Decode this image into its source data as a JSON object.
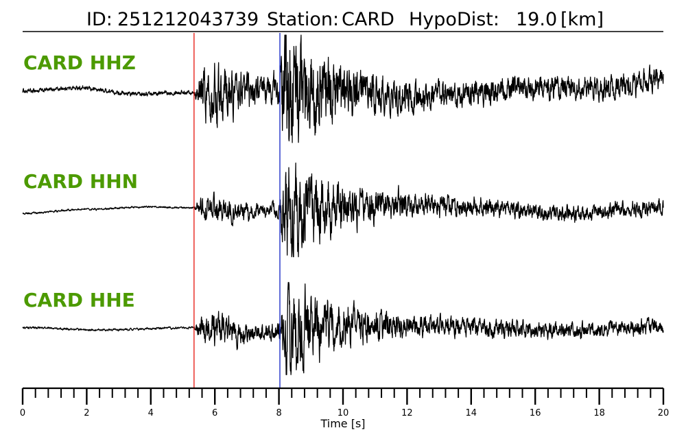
{
  "chart_data": {
    "type": "line",
    "title": {
      "id_label": "ID:",
      "id_value": "251212043739",
      "station_label": "Station:",
      "station_value": "CARD",
      "hypodist_label": "HypoDist:",
      "hypodist_value": "19.0",
      "hypodist_unit": "[km]"
    },
    "xlabel": "Time [s]",
    "xlim": [
      0,
      20
    ],
    "major_ticks": [
      0,
      2,
      4,
      6,
      8,
      10,
      12,
      14,
      16,
      18,
      20
    ],
    "minor_tick_step": 0.4,
    "label_color": "#4c9a00",
    "trace_color": "#000000",
    "picks": [
      {
        "phase": "P",
        "time": 5.35,
        "color": "#e8221b"
      },
      {
        "phase": "S",
        "time": 8.03,
        "color": "#1f31c8"
      }
    ],
    "series": [
      {
        "name": "CARD HHZ",
        "pre_event_noise": 0.04,
        "p_coda": 0.45,
        "s_peak": 1.0,
        "s_decay": 1.6,
        "late_level": 0.22,
        "drift": [
          {
            "t": 0,
            "v": 0.0
          },
          {
            "t": 1.7,
            "v": 0.06
          },
          {
            "t": 3.5,
            "v": -0.05
          },
          {
            "t": 5.3,
            "v": -0.02
          },
          {
            "t": 9.0,
            "v": 0.04
          },
          {
            "t": 12.0,
            "v": -0.12
          },
          {
            "t": 14.0,
            "v": -0.05
          },
          {
            "t": 16.0,
            "v": 0.07
          },
          {
            "t": 18.0,
            "v": 0.03
          },
          {
            "t": 19.5,
            "v": 0.18
          },
          {
            "t": 20.0,
            "v": 0.24
          }
        ]
      },
      {
        "name": "CARD HHN",
        "pre_event_noise": 0.02,
        "p_coda": 0.25,
        "s_peak": 1.0,
        "s_decay": 1.8,
        "late_level": 0.16,
        "drift": [
          {
            "t": 0,
            "v": -0.12
          },
          {
            "t": 2.0,
            "v": -0.03
          },
          {
            "t": 4.0,
            "v": 0.02
          },
          {
            "t": 5.3,
            "v": 0.0
          },
          {
            "t": 7.0,
            "v": -0.08
          },
          {
            "t": 10.0,
            "v": 0.03
          },
          {
            "t": 12.0,
            "v": 0.08
          },
          {
            "t": 14.0,
            "v": 0.02
          },
          {
            "t": 17.0,
            "v": -0.13
          },
          {
            "t": 19.0,
            "v": -0.03
          },
          {
            "t": 20.0,
            "v": 0.02
          }
        ]
      },
      {
        "name": "CARD HHE",
        "pre_event_noise": 0.025,
        "p_coda": 0.32,
        "s_peak": 1.0,
        "s_decay": 1.7,
        "late_level": 0.17,
        "drift": [
          {
            "t": 0,
            "v": 0.02
          },
          {
            "t": 2.5,
            "v": -0.03
          },
          {
            "t": 5.3,
            "v": 0.02
          },
          {
            "t": 7.5,
            "v": -0.12
          },
          {
            "t": 10.0,
            "v": 0.06
          },
          {
            "t": 13.0,
            "v": 0.06
          },
          {
            "t": 15.0,
            "v": -0.02
          },
          {
            "t": 17.0,
            "v": -0.05
          },
          {
            "t": 20.0,
            "v": 0.05
          }
        ]
      }
    ]
  }
}
